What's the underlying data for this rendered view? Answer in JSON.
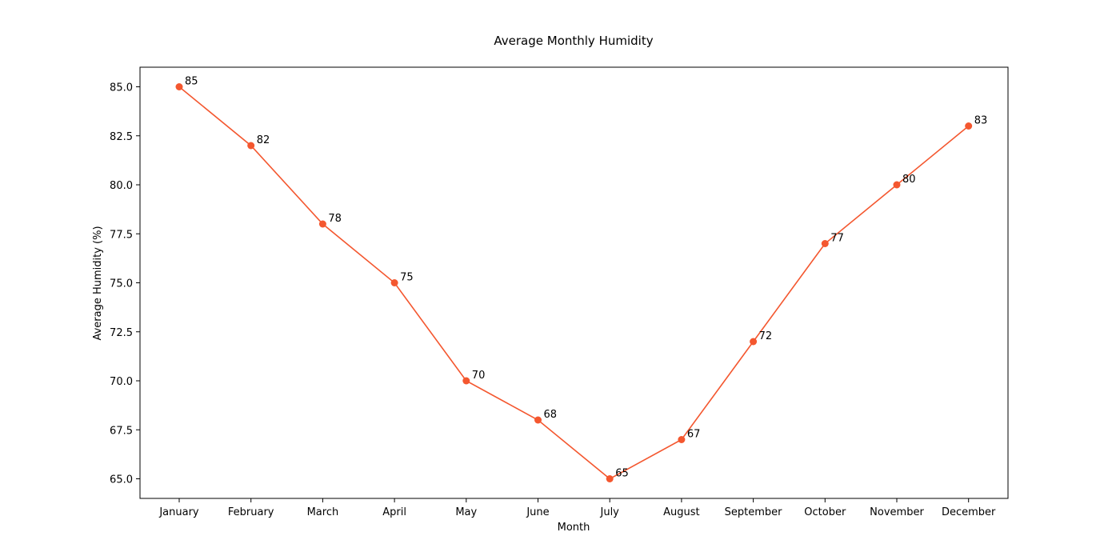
{
  "chart_data": {
    "type": "line",
    "title": "Average Monthly Humidity",
    "xlabel": "Month",
    "ylabel": "Average Humidity (%)",
    "categories": [
      "January",
      "February",
      "March",
      "April",
      "May",
      "June",
      "July",
      "August",
      "September",
      "October",
      "November",
      "December"
    ],
    "series": [
      {
        "values": [
          85,
          82,
          78,
          75,
          70,
          68,
          65,
          67,
          72,
          77,
          80,
          83
        ],
        "color": "#F4572F",
        "marker": "circle",
        "data_labels": [
          "85",
          "82",
          "78",
          "75",
          "70",
          "68",
          "65",
          "67",
          "72",
          "77",
          "80",
          "83"
        ]
      }
    ],
    "ylim": [
      64.0,
      86.0
    ],
    "yticks": [
      65.0,
      67.5,
      70.0,
      72.5,
      75.0,
      77.5,
      80.0,
      82.5,
      85.0
    ],
    "ytick_labels": [
      "65.0",
      "67.5",
      "70.0",
      "72.5",
      "75.0",
      "77.5",
      "80.0",
      "82.5",
      "85.0"
    ],
    "grid": false,
    "legend": "none"
  }
}
